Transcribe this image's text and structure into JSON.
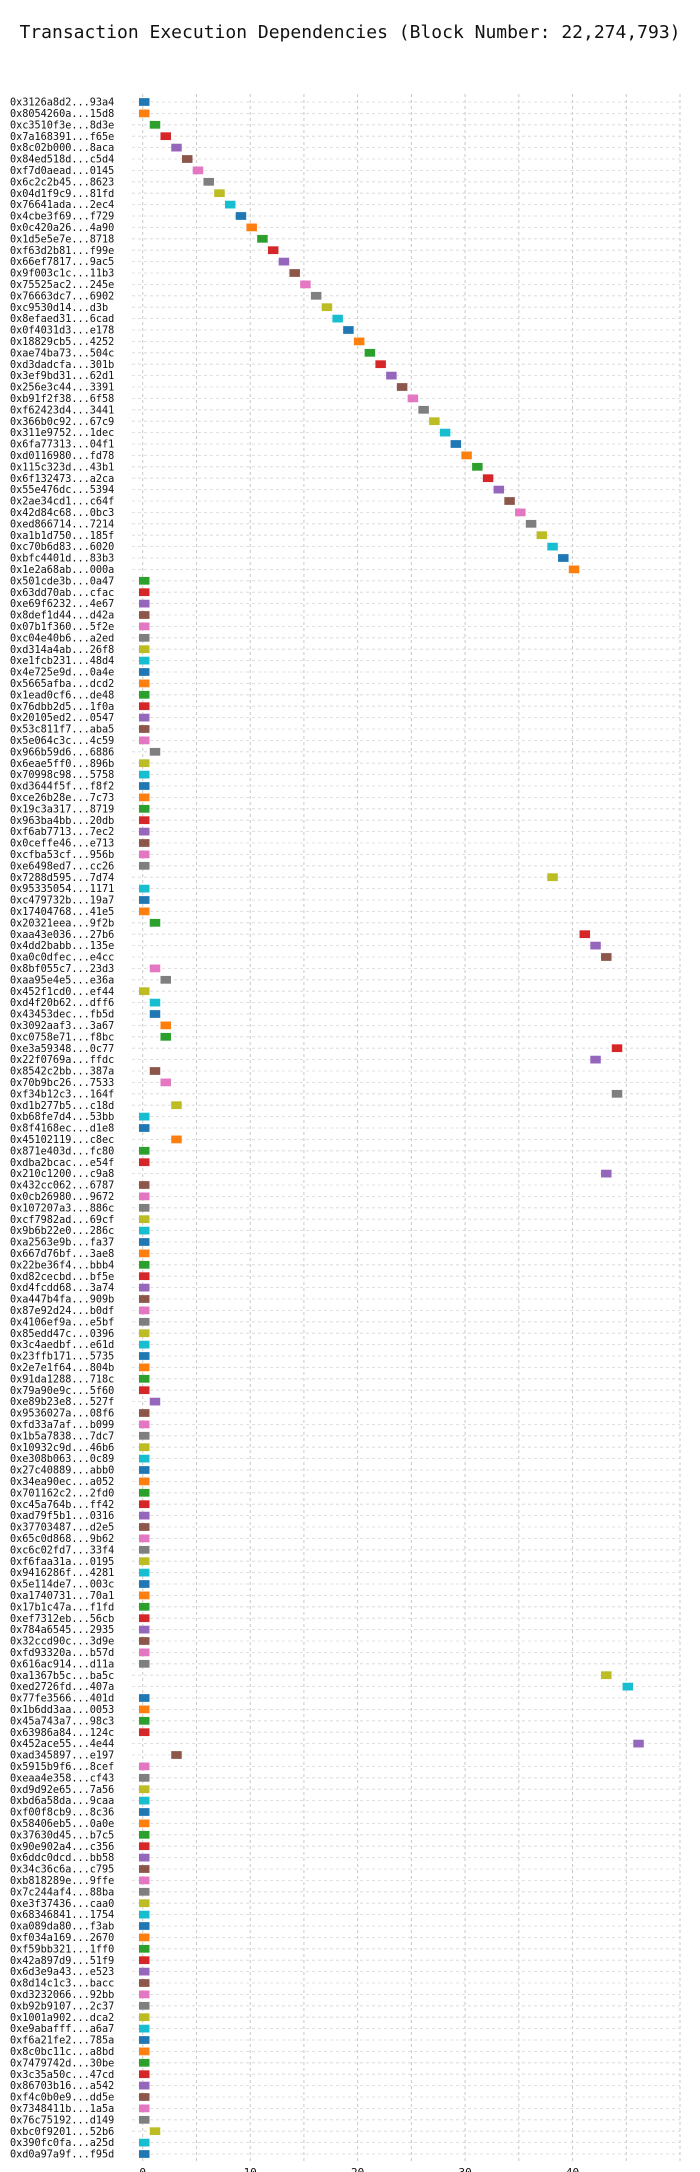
{
  "chart_data": {
    "type": "gantt",
    "title": "Transaction Execution Dependencies (Block Number: 22,274,793)",
    "xlabel": "",
    "ylabel": "",
    "xlim": [
      -1,
      50
    ],
    "x_ticks": [
      0,
      10,
      20,
      30,
      40
    ],
    "grid": "vertical-dashed",
    "rows": [
      {
        "label": "0x3126a8d2...93a4",
        "start": 0,
        "color": "#1f77b4"
      },
      {
        "label": "0x8054260a...15d8",
        "start": 0,
        "color": "#ff7f0e"
      },
      {
        "label": "0xc3510f3e...8d3e",
        "start": 1,
        "color": "#2ca02c"
      },
      {
        "label": "0x7a168391...f65e",
        "start": 2,
        "color": "#d62728"
      },
      {
        "label": "0x8c02b000...8aca",
        "start": 3,
        "color": "#9467bd"
      },
      {
        "label": "0x84ed518d...c5d4",
        "start": 4,
        "color": "#8c564b"
      },
      {
        "label": "0xf7d0aead...0145",
        "start": 5,
        "color": "#e377c2"
      },
      {
        "label": "0x6c2c2b45...8623",
        "start": 6,
        "color": "#7f7f7f"
      },
      {
        "label": "0x04d1f9c9...81fd",
        "start": 7,
        "color": "#bcbd22"
      },
      {
        "label": "0x76641ada...2ec4",
        "start": 8,
        "color": "#17becf"
      },
      {
        "label": "0x4cbe3f69...f729",
        "start": 9,
        "color": "#1f77b4"
      },
      {
        "label": "0x0c420a26...4a90",
        "start": 10,
        "color": "#ff7f0e"
      },
      {
        "label": "0x1d5e5e7e...8718",
        "start": 11,
        "color": "#2ca02c"
      },
      {
        "label": "0xf63d2b81...f99e",
        "start": 12,
        "color": "#d62728"
      },
      {
        "label": "0x66ef7817...9ac5",
        "start": 13,
        "color": "#9467bd"
      },
      {
        "label": "0x9f003c1c...11b3",
        "start": 14,
        "color": "#8c564b"
      },
      {
        "label": "0x75525ac2...245e",
        "start": 15,
        "color": "#e377c2"
      },
      {
        "label": "0x76663dc7...6902",
        "start": 16,
        "color": "#7f7f7f"
      },
      {
        "label": "0xc9530d14...d3b",
        "start": 17,
        "color": "#bcbd22"
      },
      {
        "label": "0x8efaed31...6cad",
        "start": 18,
        "color": "#17becf"
      },
      {
        "label": "0x0f4031d3...e178",
        "start": 19,
        "color": "#1f77b4"
      },
      {
        "label": "0x18829cb5...4252",
        "start": 20,
        "color": "#ff7f0e"
      },
      {
        "label": "0xae74ba73...504c",
        "start": 21,
        "color": "#2ca02c"
      },
      {
        "label": "0xd3dadcfa...301b",
        "start": 22,
        "color": "#d62728"
      },
      {
        "label": "0x3ef9bd31...62d1",
        "start": 23,
        "color": "#9467bd"
      },
      {
        "label": "0x256e3c44...3391",
        "start": 24,
        "color": "#8c564b"
      },
      {
        "label": "0xb91f2f38...6f58",
        "start": 25,
        "color": "#e377c2"
      },
      {
        "label": "0xf62423d4...3441",
        "start": 26,
        "color": "#7f7f7f"
      },
      {
        "label": "0x366b0c92...67c9",
        "start": 27,
        "color": "#bcbd22"
      },
      {
        "label": "0x311e9752...1dec",
        "start": 28,
        "color": "#17becf"
      },
      {
        "label": "0x6fa77313...04f1",
        "start": 29,
        "color": "#1f77b4"
      },
      {
        "label": "0xd0116980...fd78",
        "start": 30,
        "color": "#ff7f0e"
      },
      {
        "label": "0x115c323d...43b1",
        "start": 31,
        "color": "#2ca02c"
      },
      {
        "label": "0x6f132473...a2ca",
        "start": 32,
        "color": "#d62728"
      },
      {
        "label": "0x55e476dc...5394",
        "start": 33,
        "color": "#9467bd"
      },
      {
        "label": "0x2ae34cd1...c64f",
        "start": 34,
        "color": "#8c564b"
      },
      {
        "label": "0x42d84c68...0bc3",
        "start": 35,
        "color": "#e377c2"
      },
      {
        "label": "0xed866714...7214",
        "start": 36,
        "color": "#7f7f7f"
      },
      {
        "label": "0xa1b1d750...185f",
        "start": 37,
        "color": "#bcbd22"
      },
      {
        "label": "0xc70b6d83...6020",
        "start": 38,
        "color": "#17becf"
      },
      {
        "label": "0xbfc4401d...83b3",
        "start": 39,
        "color": "#1f77b4"
      },
      {
        "label": "0x1e2a68ab...000a",
        "start": 40,
        "color": "#ff7f0e"
      },
      {
        "label": "0x501cde3b...0a47",
        "start": 0,
        "color": "#2ca02c"
      },
      {
        "label": "0x63dd70ab...cfac",
        "start": 0,
        "color": "#d62728"
      },
      {
        "label": "0xe69f6232...4e67",
        "start": 0,
        "color": "#9467bd"
      },
      {
        "label": "0x8def1d44...d42a",
        "start": 0,
        "color": "#8c564b"
      },
      {
        "label": "0x07b1f360...5f2e",
        "start": 0,
        "color": "#e377c2"
      },
      {
        "label": "0xc04e40b6...a2ed",
        "start": 0,
        "color": "#7f7f7f"
      },
      {
        "label": "0xd314a4ab...26f8",
        "start": 0,
        "color": "#bcbd22"
      },
      {
        "label": "0xe1fcb231...48d4",
        "start": 0,
        "color": "#17becf"
      },
      {
        "label": "0x4e725e9d...0a4e",
        "start": 0,
        "color": "#1f77b4"
      },
      {
        "label": "0x5665afba...dcd2",
        "start": 0,
        "color": "#ff7f0e"
      },
      {
        "label": "0x1ead0cf6...de48",
        "start": 0,
        "color": "#2ca02c"
      },
      {
        "label": "0x76dbb2d5...1f0a",
        "start": 0,
        "color": "#d62728"
      },
      {
        "label": "0x20105ed2...0547",
        "start": 0,
        "color": "#9467bd"
      },
      {
        "label": "0x53c811f7...aba5",
        "start": 0,
        "color": "#8c564b"
      },
      {
        "label": "0x5e064c3c...4c59",
        "start": 0,
        "color": "#e377c2"
      },
      {
        "label": "0x966b59d6...6886",
        "start": 1,
        "color": "#7f7f7f"
      },
      {
        "label": "0x6eae5ff0...896b",
        "start": 0,
        "color": "#bcbd22"
      },
      {
        "label": "0x70998c98...5758",
        "start": 0,
        "color": "#17becf"
      },
      {
        "label": "0xd3644f5f...f8f2",
        "start": 0,
        "color": "#1f77b4"
      },
      {
        "label": "0xce26b28e...7c73",
        "start": 0,
        "color": "#ff7f0e"
      },
      {
        "label": "0x19c3a317...8719",
        "start": 0,
        "color": "#2ca02c"
      },
      {
        "label": "0x963ba4bb...20db",
        "start": 0,
        "color": "#d62728"
      },
      {
        "label": "0xf6ab7713...7ec2",
        "start": 0,
        "color": "#9467bd"
      },
      {
        "label": "0x0ceffe46...e713",
        "start": 0,
        "color": "#8c564b"
      },
      {
        "label": "0xcfba53cf...956b",
        "start": 0,
        "color": "#e377c2"
      },
      {
        "label": "0xe6498ed7...cc26",
        "start": 0,
        "color": "#7f7f7f"
      },
      {
        "label": "0x7288d595...7d74",
        "start": 38,
        "color": "#bcbd22"
      },
      {
        "label": "0x95335054...1171",
        "start": 0,
        "color": "#17becf"
      },
      {
        "label": "0xc479732b...19a7",
        "start": 0,
        "color": "#1f77b4"
      },
      {
        "label": "0x17404768...41e5",
        "start": 0,
        "color": "#ff7f0e"
      },
      {
        "label": "0x20321eea...9f2b",
        "start": 1,
        "color": "#2ca02c"
      },
      {
        "label": "0xaa43e036...27b6",
        "start": 41,
        "color": "#d62728"
      },
      {
        "label": "0x4dd2babb...135e",
        "start": 42,
        "color": "#9467bd"
      },
      {
        "label": "0xa0c0dfec...e4cc",
        "start": 43,
        "color": "#8c564b"
      },
      {
        "label": "0x8bf055c7...23d3",
        "start": 1,
        "color": "#e377c2"
      },
      {
        "label": "0xaa95e4e5...e36a",
        "start": 2,
        "color": "#7f7f7f"
      },
      {
        "label": "0x452f1cd0...ef44",
        "start": 0,
        "color": "#bcbd22"
      },
      {
        "label": "0xd4f20b62...dff6",
        "start": 1,
        "color": "#17becf"
      },
      {
        "label": "0x43453dec...fb5d",
        "start": 1,
        "color": "#1f77b4"
      },
      {
        "label": "0x3092aaf3...3a67",
        "start": 2,
        "color": "#ff7f0e"
      },
      {
        "label": "0xc0758e71...f8bc",
        "start": 2,
        "color": "#2ca02c"
      },
      {
        "label": "0xe3a59348...0c77",
        "start": 44,
        "color": "#d62728"
      },
      {
        "label": "0x22f0769a...ffdc",
        "start": 42,
        "color": "#9467bd"
      },
      {
        "label": "0x8542c2bb...387a",
        "start": 1,
        "color": "#8c564b"
      },
      {
        "label": "0x70b9bc26...7533",
        "start": 2,
        "color": "#e377c2"
      },
      {
        "label": "0xf34b12c3...164f",
        "start": 44,
        "color": "#7f7f7f"
      },
      {
        "label": "0xd1b277b5...c18d",
        "start": 3,
        "color": "#bcbd22"
      },
      {
        "label": "0xb68fe7d4...53bb",
        "start": 0,
        "color": "#17becf"
      },
      {
        "label": "0x8f4168ec...d1e8",
        "start": 0,
        "color": "#1f77b4"
      },
      {
        "label": "0x45102119...c8ec",
        "start": 3,
        "color": "#ff7f0e"
      },
      {
        "label": "0x871e403d...fc80",
        "start": 0,
        "color": "#2ca02c"
      },
      {
        "label": "0xdba2bcac...e54f",
        "start": 0,
        "color": "#d62728"
      },
      {
        "label": "0x210c1200...c9a8",
        "start": 43,
        "color": "#9467bd"
      },
      {
        "label": "0x432cc062...6787",
        "start": 0,
        "color": "#8c564b"
      },
      {
        "label": "0x0cb26980...9672",
        "start": 0,
        "color": "#e377c2"
      },
      {
        "label": "0x107207a3...886c",
        "start": 0,
        "color": "#7f7f7f"
      },
      {
        "label": "0xcf7982ad...69cf",
        "start": 0,
        "color": "#bcbd22"
      },
      {
        "label": "0x9b6b22e0...286c",
        "start": 0,
        "color": "#17becf"
      },
      {
        "label": "0xa2563e9b...fa37",
        "start": 0,
        "color": "#1f77b4"
      },
      {
        "label": "0x667d76bf...3ae8",
        "start": 0,
        "color": "#ff7f0e"
      },
      {
        "label": "0x22be36f4...bbb4",
        "start": 0,
        "color": "#2ca02c"
      },
      {
        "label": "0xd82cecbd...bf5e",
        "start": 0,
        "color": "#d62728"
      },
      {
        "label": "0xd4fcdd68...3a74",
        "start": 0,
        "color": "#9467bd"
      },
      {
        "label": "0xa447b4fa...909b",
        "start": 0,
        "color": "#8c564b"
      },
      {
        "label": "0x87e92d24...b0df",
        "start": 0,
        "color": "#e377c2"
      },
      {
        "label": "0x4106ef9a...e5bf",
        "start": 0,
        "color": "#7f7f7f"
      },
      {
        "label": "0x85edd47c...0396",
        "start": 0,
        "color": "#bcbd22"
      },
      {
        "label": "0x3c4aedbf...e61d",
        "start": 0,
        "color": "#17becf"
      },
      {
        "label": "0x23ffb171...5735",
        "start": 0,
        "color": "#1f77b4"
      },
      {
        "label": "0x2e7e1f64...804b",
        "start": 0,
        "color": "#ff7f0e"
      },
      {
        "label": "0x91da1288...718c",
        "start": 0,
        "color": "#2ca02c"
      },
      {
        "label": "0x79a90e9c...5f60",
        "start": 0,
        "color": "#d62728"
      },
      {
        "label": "0xe89b23e8...527f",
        "start": 1,
        "color": "#9467bd"
      },
      {
        "label": "0x9536027a...08f6",
        "start": 0,
        "color": "#8c564b"
      },
      {
        "label": "0xfd33a7af...b099",
        "start": 0,
        "color": "#e377c2"
      },
      {
        "label": "0x1b5a7838...7dc7",
        "start": 0,
        "color": "#7f7f7f"
      },
      {
        "label": "0x10932c9d...46b6",
        "start": 0,
        "color": "#bcbd22"
      },
      {
        "label": "0xe308b063...0c89",
        "start": 0,
        "color": "#17becf"
      },
      {
        "label": "0x27c40889...abb0",
        "start": 0,
        "color": "#1f77b4"
      },
      {
        "label": "0x34ea90ec...a052",
        "start": 0,
        "color": "#ff7f0e"
      },
      {
        "label": "0x701162c2...2fd0",
        "start": 0,
        "color": "#2ca02c"
      },
      {
        "label": "0xc45a764b...ff42",
        "start": 0,
        "color": "#d62728"
      },
      {
        "label": "0xad79f5b1...0316",
        "start": 0,
        "color": "#9467bd"
      },
      {
        "label": "0x37703487...d2e5",
        "start": 0,
        "color": "#8c564b"
      },
      {
        "label": "0x65c0d868...9b62",
        "start": 0,
        "color": "#e377c2"
      },
      {
        "label": "0xc6c02fd7...33f4",
        "start": 0,
        "color": "#7f7f7f"
      },
      {
        "label": "0xf6faa31a...0195",
        "start": 0,
        "color": "#bcbd22"
      },
      {
        "label": "0x9416286f...4281",
        "start": 0,
        "color": "#17becf"
      },
      {
        "label": "0x5e114de7...003c",
        "start": 0,
        "color": "#1f77b4"
      },
      {
        "label": "0xa1740731...70a1",
        "start": 0,
        "color": "#ff7f0e"
      },
      {
        "label": "0x17b1c47a...f1fd",
        "start": 0,
        "color": "#2ca02c"
      },
      {
        "label": "0xef7312eb...56cb",
        "start": 0,
        "color": "#d62728"
      },
      {
        "label": "0x784a6545...2935",
        "start": 0,
        "color": "#9467bd"
      },
      {
        "label": "0x32ccd90c...3d9e",
        "start": 0,
        "color": "#8c564b"
      },
      {
        "label": "0xfd93320a...b57d",
        "start": 0,
        "color": "#e377c2"
      },
      {
        "label": "0x616ac914...d11a",
        "start": 0,
        "color": "#7f7f7f"
      },
      {
        "label": "0xa1367b5c...ba5c",
        "start": 43,
        "color": "#bcbd22"
      },
      {
        "label": "0xed2726fd...407a",
        "start": 45,
        "color": "#17becf"
      },
      {
        "label": "0x77fe3566...401d",
        "start": 0,
        "color": "#1f77b4"
      },
      {
        "label": "0x1b6dd3aa...0053",
        "start": 0,
        "color": "#ff7f0e"
      },
      {
        "label": "0x45a743a7...98c3",
        "start": 0,
        "color": "#2ca02c"
      },
      {
        "label": "0x63986a84...124c",
        "start": 0,
        "color": "#d62728"
      },
      {
        "label": "0x452ace55...4e44",
        "start": 46,
        "color": "#9467bd"
      },
      {
        "label": "0xad345897...e197",
        "start": 3,
        "color": "#8c564b"
      },
      {
        "label": "0x5915b9f6...8cef",
        "start": 0,
        "color": "#e377c2"
      },
      {
        "label": "0xeaa4e358...cf43",
        "start": 0,
        "color": "#7f7f7f"
      },
      {
        "label": "0xd9d92e65...7a56",
        "start": 0,
        "color": "#bcbd22"
      },
      {
        "label": "0xbd6a58da...9caa",
        "start": 0,
        "color": "#17becf"
      },
      {
        "label": "0xf00f8cb9...8c36",
        "start": 0,
        "color": "#1f77b4"
      },
      {
        "label": "0x58406eb5...0a0e",
        "start": 0,
        "color": "#ff7f0e"
      },
      {
        "label": "0x37630d45...b7c5",
        "start": 0,
        "color": "#2ca02c"
      },
      {
        "label": "0x90e902a4...c356",
        "start": 0,
        "color": "#d62728"
      },
      {
        "label": "0x6ddc0dcd...bb58",
        "start": 0,
        "color": "#9467bd"
      },
      {
        "label": "0x34c36c6a...c795",
        "start": 0,
        "color": "#8c564b"
      },
      {
        "label": "0xb818289e...9ffe",
        "start": 0,
        "color": "#e377c2"
      },
      {
        "label": "0x7c244af4...88ba",
        "start": 0,
        "color": "#7f7f7f"
      },
      {
        "label": "0xe3f37436...caa0",
        "start": 0,
        "color": "#bcbd22"
      },
      {
        "label": "0x68346841...1754",
        "start": 0,
        "color": "#17becf"
      },
      {
        "label": "0xa089da80...f3ab",
        "start": 0,
        "color": "#1f77b4"
      },
      {
        "label": "0xf034a169...2670",
        "start": 0,
        "color": "#ff7f0e"
      },
      {
        "label": "0xf59bb321...1ff0",
        "start": 0,
        "color": "#2ca02c"
      },
      {
        "label": "0x42a897d9...51f9",
        "start": 0,
        "color": "#d62728"
      },
      {
        "label": "0x6d3e9a43...e523",
        "start": 0,
        "color": "#9467bd"
      },
      {
        "label": "0x8d14c1c3...bacc",
        "start": 0,
        "color": "#8c564b"
      },
      {
        "label": "0xd3232066...92bb",
        "start": 0,
        "color": "#e377c2"
      },
      {
        "label": "0xb92b9107...2c37",
        "start": 0,
        "color": "#7f7f7f"
      },
      {
        "label": "0x1001a902...dca2",
        "start": 0,
        "color": "#bcbd22"
      },
      {
        "label": "0xe9abafff...a6a7",
        "start": 0,
        "color": "#17becf"
      },
      {
        "label": "0xf6a21fe2...785a",
        "start": 0,
        "color": "#1f77b4"
      },
      {
        "label": "0x8c0bc11c...a8bd",
        "start": 0,
        "color": "#ff7f0e"
      },
      {
        "label": "0x7479742d...30be",
        "start": 0,
        "color": "#2ca02c"
      },
      {
        "label": "0x3c35a50c...47cd",
        "start": 0,
        "color": "#d62728"
      },
      {
        "label": "0x86703b16...a542",
        "start": 0,
        "color": "#9467bd"
      },
      {
        "label": "0xf4c0b0e9...dd5e",
        "start": 0,
        "color": "#8c564b"
      },
      {
        "label": "0x7348411b...1a5a",
        "start": 0,
        "color": "#e377c2"
      },
      {
        "label": "0x76c75192...d149",
        "start": 0,
        "color": "#7f7f7f"
      },
      {
        "label": "0xbc0f9201...52b6",
        "start": 1,
        "color": "#bcbd22"
      },
      {
        "label": "0x390fc0fa...a25d",
        "start": 0,
        "color": "#17becf"
      },
      {
        "label": "0xd0a97a9f...f95d",
        "start": 0,
        "color": "#1f77b4"
      }
    ]
  }
}
